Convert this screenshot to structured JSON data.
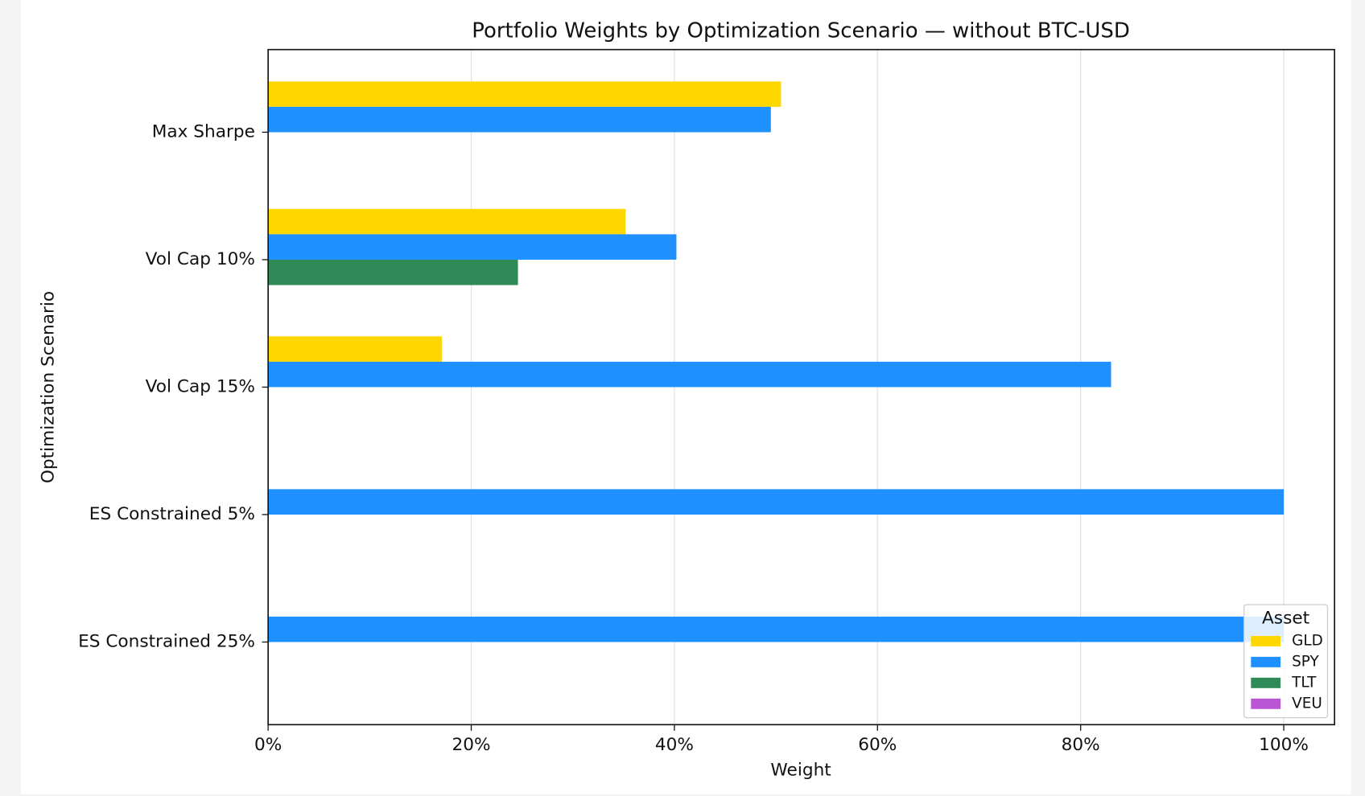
{
  "chart_data": {
    "type": "barh",
    "title": "Portfolio Weights by Optimization Scenario — without BTC-USD",
    "x_label": "Weight",
    "y_label": "Optimization Scenario",
    "categories": [
      "Max Sharpe",
      "Vol Cap 10%",
      "Vol Cap 15%",
      "ES Constrained 5%",
      "ES Constrained 25%"
    ],
    "series": [
      {
        "name": "GLD",
        "color": "#FFD700",
        "values": [
          50.5,
          35.2,
          17.1,
          0,
          0
        ]
      },
      {
        "name": "SPY",
        "color": "#1E90FF",
        "values": [
          49.5,
          40.2,
          83.0,
          100,
          100
        ]
      },
      {
        "name": "TLT",
        "color": "#2E8B57",
        "values": [
          0,
          24.6,
          0,
          0,
          0
        ]
      },
      {
        "name": "VEU",
        "color": "#BA55D3",
        "values": [
          0,
          0,
          0,
          0,
          0
        ]
      }
    ],
    "xlim": [
      0,
      105
    ],
    "xticks": [
      {
        "value": 0,
        "label": "0%"
      },
      {
        "value": 20,
        "label": "20%"
      },
      {
        "value": 40,
        "label": "40%"
      },
      {
        "value": 60,
        "label": "60%"
      },
      {
        "value": 80,
        "label": "80%"
      },
      {
        "value": 100,
        "label": "100%"
      }
    ],
    "grid": true,
    "legend_title": "Asset",
    "legend_position": "lower right"
  }
}
